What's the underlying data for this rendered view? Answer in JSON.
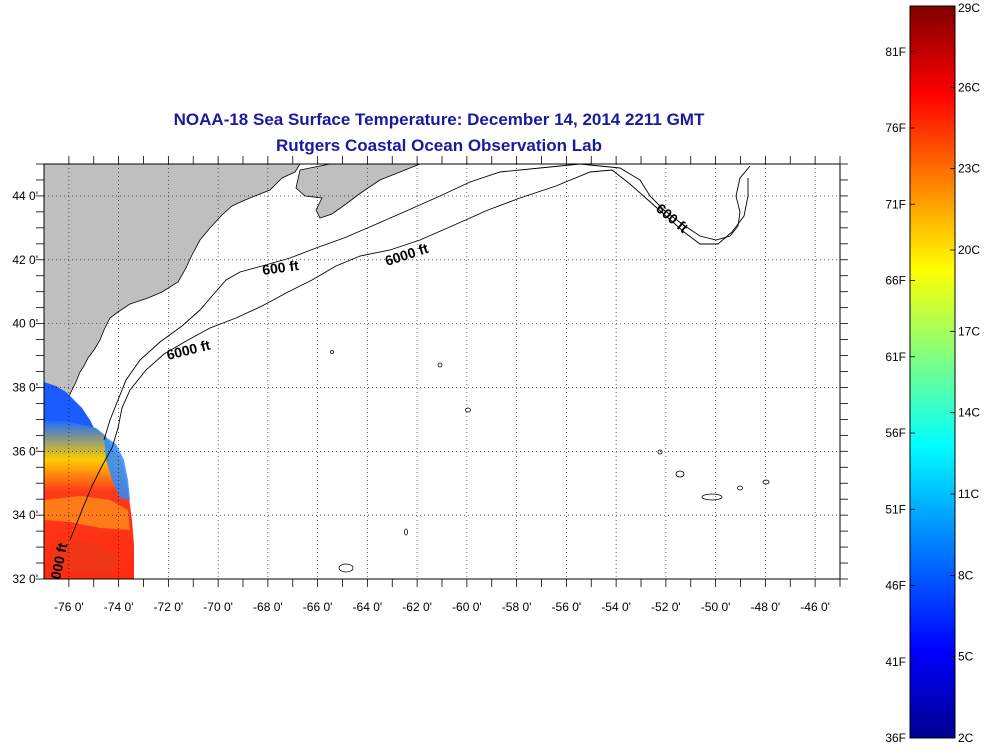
{
  "title": "NOAA-18 Sea Surface Temperature:  December 14, 2014 2211 GMT",
  "subtitle": "Rutgers Coastal Ocean Observation Lab",
  "map": {
    "lon_range": [
      -77,
      -45
    ],
    "lat_range": [
      32,
      45
    ],
    "lat_ticks": [
      "44 0'",
      "42 0'",
      "40 0'",
      "38 0'",
      "36 0'",
      "34 0'",
      "32 0'"
    ],
    "lon_ticks": [
      "-76 0'",
      "-74 0'",
      "-72 0'",
      "-70 0'",
      "-68 0'",
      "-66 0'",
      "-64 0'",
      "-62 0'",
      "-60 0'",
      "-58 0'",
      "-56 0'",
      "-54 0'",
      "-52 0'",
      "-50 0'",
      "-48 0'",
      "-46 0'"
    ],
    "contour_labels": [
      "600 ft",
      "6000 ft",
      "6000 ft",
      "600 ft",
      "000 ft"
    ],
    "grid": "dotted",
    "land_color": "#bfbfbf",
    "ocean_color": "#ffffff"
  },
  "colorbar": {
    "celsius_labels": [
      "29C",
      "26C",
      "23C",
      "20C",
      "17C",
      "14C",
      "11C",
      "8C",
      "5C",
      "2C"
    ],
    "fahrenheit_labels": [
      "81F",
      "76F",
      "71F",
      "66F",
      "61F",
      "56F",
      "51F",
      "46F",
      "41F",
      "36F"
    ],
    "celsius_range": [
      2,
      29
    ],
    "fahrenheit_range": [
      36,
      84
    ],
    "colors": [
      "#00008f",
      "#0000ff",
      "#00a0ff",
      "#00ffff",
      "#80ff80",
      "#ffff00",
      "#ff8000",
      "#ff0000",
      "#800000"
    ]
  }
}
